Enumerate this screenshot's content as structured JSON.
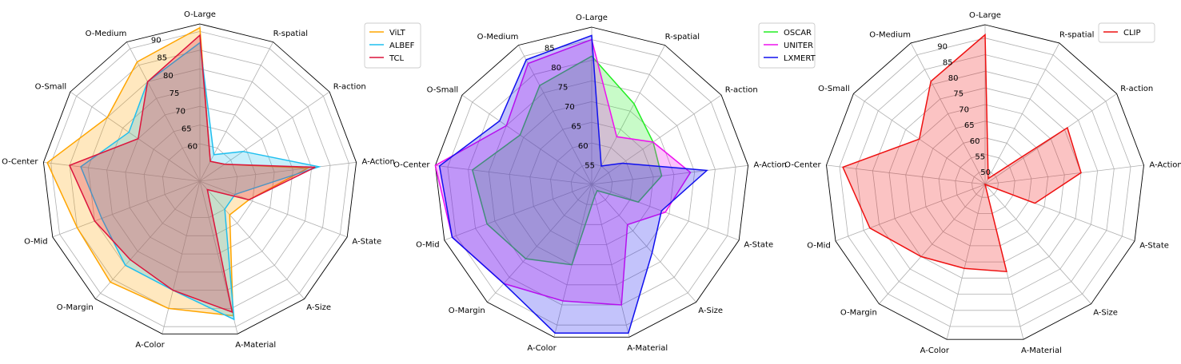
{
  "chart_data": [
    {
      "type": "radar",
      "categories": [
        "O-Large",
        "R-spatial",
        "R-action",
        "A-Action",
        "A-State",
        "A-Size",
        "A-Material",
        "A-Color",
        "O-Margin",
        "O-Mid",
        "O-Center",
        "O-Small",
        "O-Medium"
      ],
      "radial_ticks": [
        "60",
        "65",
        "70",
        "75",
        "80",
        "85",
        "90"
      ],
      "rlim": [
        50,
        92
      ],
      "grid": true,
      "legend_position": "top-right",
      "series": [
        {
          "name": "ViLT",
          "color": "#ffa500",
          "values": [
            91,
            56,
            58,
            79,
            64,
            62,
            87,
            85,
            86,
            85,
            91,
            80,
            86
          ]
        },
        {
          "name": "ALBEF",
          "color": "#1fbfef",
          "values": [
            87,
            58,
            64,
            82,
            60,
            60,
            88,
            80,
            80,
            78,
            82,
            73,
            80
          ]
        },
        {
          "name": "TCL",
          "color": "#dc143c",
          "values": [
            89,
            56,
            58,
            81,
            64,
            53,
            86,
            80,
            78,
            80,
            85,
            70,
            80
          ]
        }
      ]
    },
    {
      "type": "radar",
      "categories": [
        "O-Large",
        "R-spatial",
        "R-action",
        "A-Action",
        "A-State",
        "A-Size",
        "A-Material",
        "A-Color",
        "O-Margin",
        "O-Mid",
        "O-Center",
        "O-Small",
        "O-Medium"
      ],
      "radial_ticks": [
        "55",
        "60",
        "65",
        "70",
        "75",
        "80",
        "85"
      ],
      "rlim": [
        50,
        88
      ],
      "grid": true,
      "legend_position": "top-right",
      "series": [
        {
          "name": "OSCAR",
          "color": "#22ee22",
          "values": [
            81,
            72,
            68,
            67,
            62,
            52,
            53,
            70,
            74,
            77,
            79,
            71,
            77
          ]
        },
        {
          "name": "UNITER",
          "color": "#ee11ee",
          "values": [
            85,
            63,
            68,
            74,
            69,
            63,
            80,
            79,
            82,
            86,
            88,
            75,
            83
          ]
        },
        {
          "name": "LXMERT",
          "color": "#1010ee",
          "values": [
            86,
            55,
            59,
            78,
            68,
            72,
            87,
            87,
            82,
            86,
            87,
            77,
            84
          ]
        }
      ]
    },
    {
      "type": "radar",
      "categories": [
        "O-Large",
        "R-spatial",
        "R-action",
        "A-Action",
        "A-State",
        "A-Size",
        "A-Material",
        "A-Color",
        "O-Margin",
        "O-Mid",
        "O-Center",
        "O-Small",
        "O-Medium"
      ],
      "radial_ticks": [
        "50",
        "55",
        "60",
        "65",
        "70",
        "75",
        "80",
        "85",
        "90"
      ],
      "rlim": [
        46,
        94
      ],
      "grid": true,
      "legend_position": "top-right",
      "series": [
        {
          "name": "CLIP",
          "color": "#ee1111",
          "values": [
            91,
            48,
            76,
            75,
            62,
            46,
            73,
            72,
            75,
            83,
            89,
            70,
            81
          ]
        }
      ]
    }
  ]
}
